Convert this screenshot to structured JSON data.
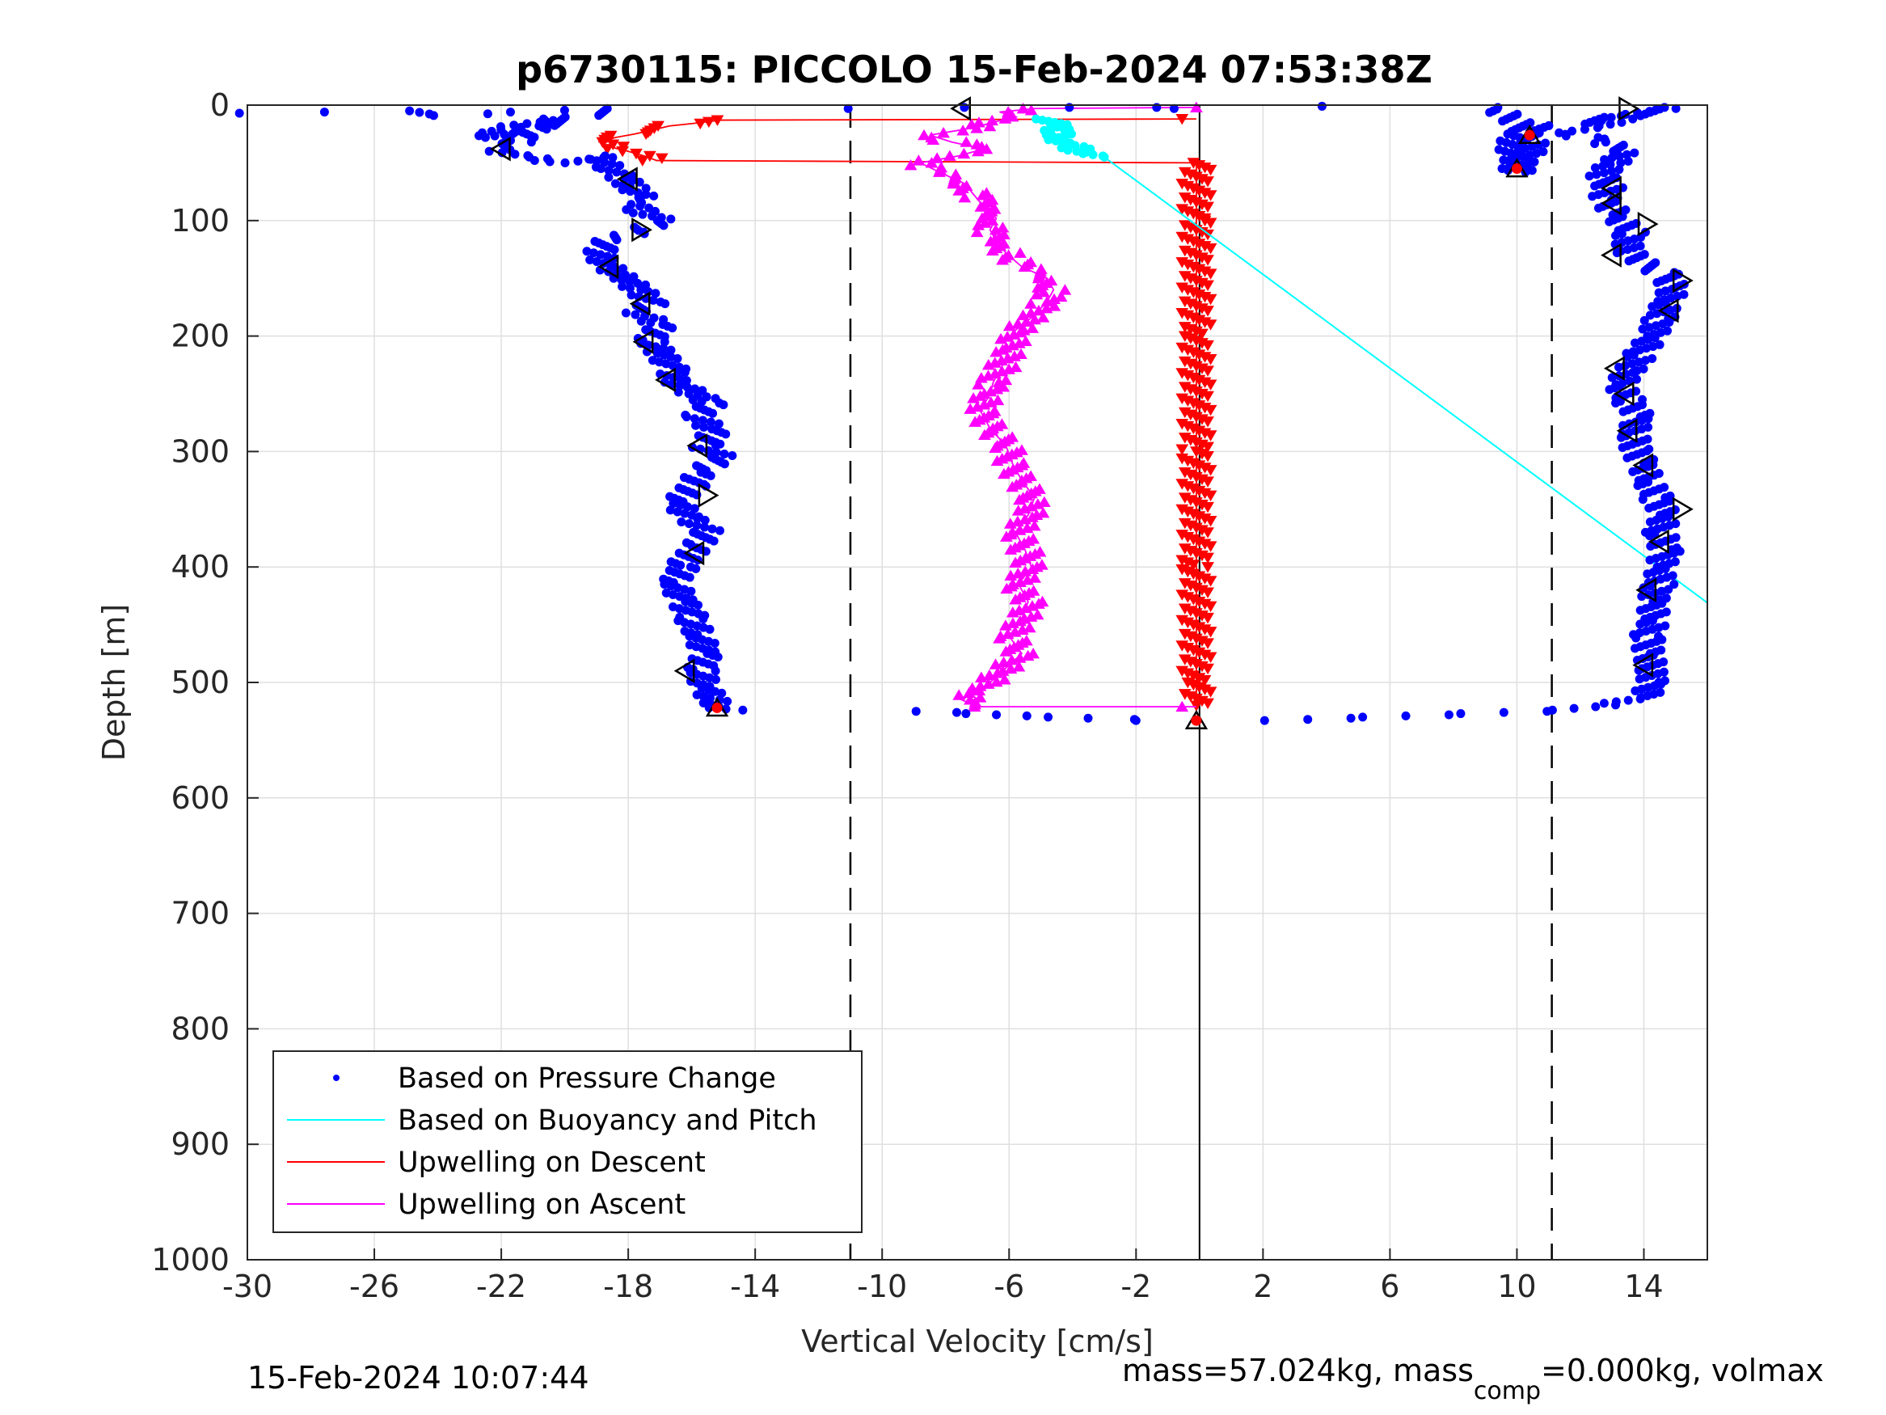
{
  "chart_data": {
    "type": "scatter",
    "title": "p6730115: PICCOLO 15-Feb-2024 07:53:38Z",
    "xlabel": "Vertical Velocity [cm/s]",
    "ylabel": "Depth [m]",
    "xlim": [
      -30,
      16
    ],
    "ylim": [
      0,
      1000
    ],
    "y_reversed": true,
    "grid": true,
    "legend_position": "bottom-left",
    "x_ticks": [
      -30,
      -26,
      -22,
      -18,
      -14,
      -10,
      -6,
      -2,
      2,
      6,
      10,
      14
    ],
    "y_ticks": [
      0,
      100,
      200,
      300,
      400,
      500,
      600,
      700,
      800,
      900,
      1000
    ],
    "reference_lines": {
      "dashed_x": [
        -11,
        11.1
      ],
      "solid_x": [
        0
      ]
    },
    "series": [
      {
        "name": "Based on Pressure Change",
        "marker": "dot",
        "color": "#0000ff",
        "descent_profile": [
          [
            -29.8,
            7
          ],
          [
            -24.8,
            5
          ],
          [
            -24.4,
            9
          ],
          [
            -18.3,
            3
          ],
          [
            -22.5,
            28
          ],
          [
            -21.8,
            20
          ],
          [
            -20.4,
            12
          ],
          [
            -20.9,
            18
          ],
          [
            -21.5,
            32
          ],
          [
            -22.2,
            40
          ],
          [
            -21.3,
            45
          ],
          [
            -20.5,
            48
          ],
          [
            -19.9,
            50
          ],
          [
            -19.0,
            44
          ],
          [
            -18.5,
            55
          ],
          [
            -18.1,
            64
          ],
          [
            -17.8,
            72
          ],
          [
            -17.4,
            80
          ],
          [
            -18.0,
            86
          ],
          [
            -17.6,
            92
          ],
          [
            -16.9,
            100
          ],
          [
            -17.7,
            110
          ],
          [
            -18.6,
            118
          ],
          [
            -19.0,
            128
          ],
          [
            -18.7,
            140
          ],
          [
            -18.1,
            150
          ],
          [
            -17.6,
            160
          ],
          [
            -17.2,
            172
          ],
          [
            -17.8,
            180
          ],
          [
            -17.0,
            190
          ],
          [
            -17.3,
            205
          ],
          [
            -16.9,
            215
          ],
          [
            -16.6,
            230
          ],
          [
            -16.4,
            240
          ],
          [
            -16.0,
            250
          ],
          [
            -15.4,
            258
          ],
          [
            -15.8,
            270
          ],
          [
            -15.2,
            282
          ],
          [
            -15.6,
            295
          ],
          [
            -15.1,
            305
          ],
          [
            -15.8,
            318
          ],
          [
            -16.0,
            330
          ],
          [
            -16.4,
            345
          ],
          [
            -16.0,
            358
          ],
          [
            -15.5,
            370
          ],
          [
            -15.9,
            382
          ],
          [
            -16.3,
            400
          ],
          [
            -16.5,
            415
          ],
          [
            -16.2,
            430
          ],
          [
            -16.0,
            445
          ],
          [
            -15.8,
            460
          ],
          [
            -15.6,
            475
          ],
          [
            -15.7,
            490
          ],
          [
            -15.5,
            505
          ],
          [
            -15.3,
            515
          ],
          [
            -15.0,
            522
          ],
          [
            -14.3,
            524
          ],
          [
            -9.2,
            525
          ],
          [
            -7.0,
            527
          ],
          [
            -6.4,
            528
          ],
          [
            -5.8,
            529
          ],
          [
            -4.5,
            530
          ],
          [
            -3.6,
            531
          ],
          [
            -2.5,
            532
          ],
          [
            -2.0,
            533
          ]
        ],
        "ascent_profile": [
          [
            2.5,
            533
          ],
          [
            3.5,
            532
          ],
          [
            4.5,
            531
          ],
          [
            5.5,
            530
          ],
          [
            6.5,
            529
          ],
          [
            7.5,
            528
          ],
          [
            8.5,
            527
          ],
          [
            9.5,
            526
          ],
          [
            10.5,
            525
          ],
          [
            11.3,
            524
          ],
          [
            12.3,
            521
          ],
          [
            13.2,
            518
          ],
          [
            14.0,
            513
          ],
          [
            14.2,
            500
          ],
          [
            14.3,
            488
          ],
          [
            14.2,
            475
          ],
          [
            14.1,
            460
          ],
          [
            14.3,
            445
          ],
          [
            14.2,
            430
          ],
          [
            14.5,
            415
          ],
          [
            14.6,
            400
          ],
          [
            14.7,
            385
          ],
          [
            14.5,
            370
          ],
          [
            14.6,
            355
          ],
          [
            14.4,
            340
          ],
          [
            14.2,
            325
          ],
          [
            14.0,
            310
          ],
          [
            13.8,
            298
          ],
          [
            13.6,
            285
          ],
          [
            13.8,
            270
          ],
          [
            13.5,
            255
          ],
          [
            13.3,
            242
          ],
          [
            13.6,
            230
          ],
          [
            13.9,
            215
          ],
          [
            14.2,
            200
          ],
          [
            14.5,
            185
          ],
          [
            14.8,
            170
          ],
          [
            15.0,
            158
          ],
          [
            14.6,
            145
          ],
          [
            13.8,
            135
          ],
          [
            13.4,
            125
          ],
          [
            13.6,
            110
          ],
          [
            13.2,
            95
          ],
          [
            12.8,
            82
          ],
          [
            12.9,
            70
          ],
          [
            12.6,
            60
          ],
          [
            13.0,
            50
          ],
          [
            13.4,
            40
          ],
          [
            12.8,
            32
          ],
          [
            12.2,
            28
          ],
          [
            11.6,
            24
          ],
          [
            12.5,
            18
          ],
          [
            13.2,
            12
          ],
          [
            13.6,
            8
          ],
          [
            14.2,
            4
          ],
          [
            15.1,
            2
          ],
          [
            9.8,
            25
          ],
          [
            10.0,
            58
          ],
          [
            10.6,
            30
          ],
          [
            9.4,
            2
          ],
          [
            3.5,
            1
          ],
          [
            -10.8,
            3
          ],
          [
            -7.5,
            2
          ],
          [
            -1.8,
            2
          ],
          [
            -0.8,
            3
          ]
        ]
      },
      {
        "name": "Based on Buoyancy and Pitch",
        "marker": "line",
        "color": "#00ffff",
        "dense_points": [
          [
            -4.7,
            12
          ],
          [
            -4.6,
            18
          ],
          [
            -4.5,
            24
          ],
          [
            -4.4,
            30
          ],
          [
            -4.2,
            34
          ],
          [
            -3.8,
            38
          ],
          [
            -3.4,
            42
          ],
          [
            -3.0,
            45
          ]
        ],
        "line": [
          [
            -3.0,
            45
          ],
          [
            16.0,
            431
          ]
        ]
      },
      {
        "name": "Upwelling on Descent",
        "marker": "triangle-down",
        "color": "#ff0000",
        "points": [
          [
            -0.1,
            12
          ],
          [
            -15.1,
            13
          ],
          [
            -16.0,
            16
          ],
          [
            -16.7,
            18
          ],
          [
            -17.3,
            22
          ],
          [
            -17.8,
            25
          ],
          [
            -18.4,
            28
          ],
          [
            -18.9,
            32
          ],
          [
            -18.6,
            36
          ],
          [
            -18.0,
            40
          ],
          [
            -17.5,
            44
          ],
          [
            -17.1,
            48
          ],
          [
            -0.1,
            50
          ],
          [
            -0.1,
            100
          ],
          [
            -0.1,
            200
          ],
          [
            -0.1,
            300
          ],
          [
            -0.1,
            400
          ],
          [
            -0.1,
            500
          ],
          [
            -0.1,
            520
          ]
        ]
      },
      {
        "name": "Upwelling on Ascent",
        "marker": "triangle-up",
        "color": "#ff00ff",
        "profile": [
          [
            -0.1,
            521
          ],
          [
            -7.0,
            521
          ],
          [
            -7.5,
            515
          ],
          [
            -6.8,
            505
          ],
          [
            -6.2,
            490
          ],
          [
            -5.6,
            475
          ],
          [
            -6.0,
            460
          ],
          [
            -5.6,
            445
          ],
          [
            -5.4,
            430
          ],
          [
            -5.7,
            415
          ],
          [
            -5.3,
            400
          ],
          [
            -5.5,
            385
          ],
          [
            -5.8,
            370
          ],
          [
            -5.4,
            355
          ],
          [
            -5.2,
            340
          ],
          [
            -5.6,
            325
          ],
          [
            -5.9,
            310
          ],
          [
            -6.1,
            295
          ],
          [
            -6.6,
            280
          ],
          [
            -6.9,
            265
          ],
          [
            -6.6,
            250
          ],
          [
            -6.5,
            240
          ],
          [
            -6.2,
            225
          ],
          [
            -6.0,
            210
          ],
          [
            -5.8,
            195
          ],
          [
            -5.2,
            182
          ],
          [
            -4.8,
            170
          ],
          [
            -4.6,
            160
          ],
          [
            -4.8,
            150
          ],
          [
            -5.6,
            140
          ],
          [
            -6.1,
            128
          ],
          [
            -6.4,
            118
          ],
          [
            -6.6,
            108
          ],
          [
            -6.4,
            98
          ],
          [
            -6.8,
            88
          ],
          [
            -7.1,
            78
          ],
          [
            -7.4,
            68
          ],
          [
            -8.2,
            58
          ],
          [
            -8.8,
            50
          ],
          [
            -7.6,
            44
          ],
          [
            -6.8,
            38
          ],
          [
            -7.8,
            32
          ],
          [
            -8.5,
            26
          ],
          [
            -7.2,
            20
          ],
          [
            -6.5,
            15
          ],
          [
            -5.8,
            10
          ],
          [
            -6.3,
            6
          ],
          [
            -5.2,
            3
          ],
          [
            -0.1,
            2
          ]
        ]
      }
    ],
    "markers": {
      "open_left_triangles": [
        [
          -7.5,
          3
        ],
        [
          -22.0,
          38
        ],
        [
          -18.0,
          64
        ],
        [
          -18.6,
          140
        ],
        [
          -17.6,
          172
        ],
        [
          -17.5,
          205
        ],
        [
          -16.8,
          238
        ],
        [
          -15.8,
          295
        ],
        [
          -15.9,
          388
        ],
        [
          -16.2,
          490
        ],
        [
          13.0,
          72
        ],
        [
          13.0,
          85
        ],
        [
          13.0,
          130
        ],
        [
          13.1,
          228
        ],
        [
          13.4,
          250
        ],
        [
          13.5,
          282
        ],
        [
          14.0,
          312
        ],
        [
          14.1,
          420
        ],
        [
          14.0,
          485
        ],
        [
          14.5,
          378
        ],
        [
          14.8,
          178
        ]
      ],
      "open_right_triangles": [
        [
          13.5,
          3
        ],
        [
          -17.6,
          108
        ],
        [
          -15.5,
          338
        ],
        [
          14.1,
          103
        ],
        [
          15.2,
          152
        ],
        [
          15.2,
          350
        ]
      ],
      "red_filled": [
        [
          -15.2,
          522
        ],
        [
          -0.1,
          533
        ],
        [
          10.4,
          26
        ],
        [
          10.0,
          55
        ]
      ]
    },
    "legend": [
      "Based on Pressure Change",
      "Based on Buoyancy and Pitch",
      "Upwelling on Descent",
      "Upwelling on Ascent"
    ]
  },
  "footer": {
    "timestamp": "15-Feb-2024 10:07:44",
    "mass_prefix": "mass=57.024kg, mass",
    "mass_sub": "comp",
    "mass_suffix": "=0.000kg, volmax"
  }
}
